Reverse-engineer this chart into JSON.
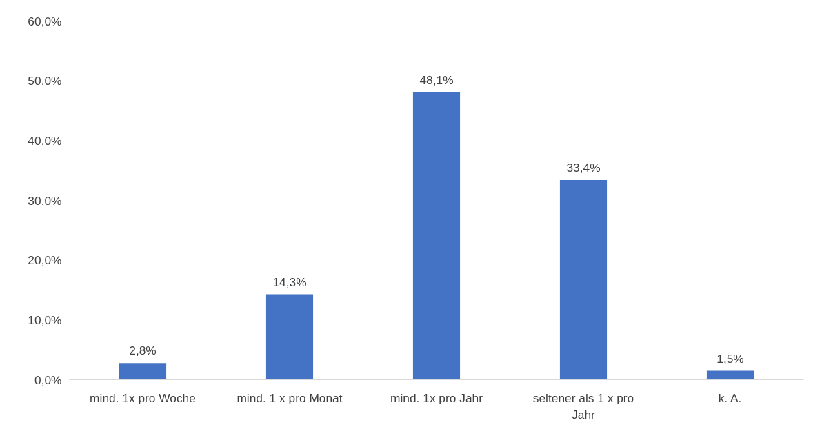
{
  "chart_data": {
    "type": "bar",
    "categories": [
      "mind. 1x pro Woche",
      "mind. 1 x pro Monat",
      "mind. 1x pro Jahr",
      "seltener als 1 x pro Jahr",
      "k. A."
    ],
    "values": [
      2.8,
      14.3,
      48.1,
      33.4,
      1.5
    ],
    "value_labels": [
      "2,8%",
      "14,3%",
      "48,1%",
      "33,4%",
      "1,5%"
    ],
    "color": "#4472c4",
    "ylim": [
      0,
      60
    ],
    "yticks": [
      {
        "value": 0,
        "label": "0,0%"
      },
      {
        "value": 10,
        "label": "10,0%"
      },
      {
        "value": 20,
        "label": "20,0%"
      },
      {
        "value": 30,
        "label": "30,0%"
      },
      {
        "value": 40,
        "label": "40,0%"
      },
      {
        "value": 50,
        "label": "50,0%"
      },
      {
        "value": 60,
        "label": "60,0%"
      }
    ],
    "grid": false
  }
}
